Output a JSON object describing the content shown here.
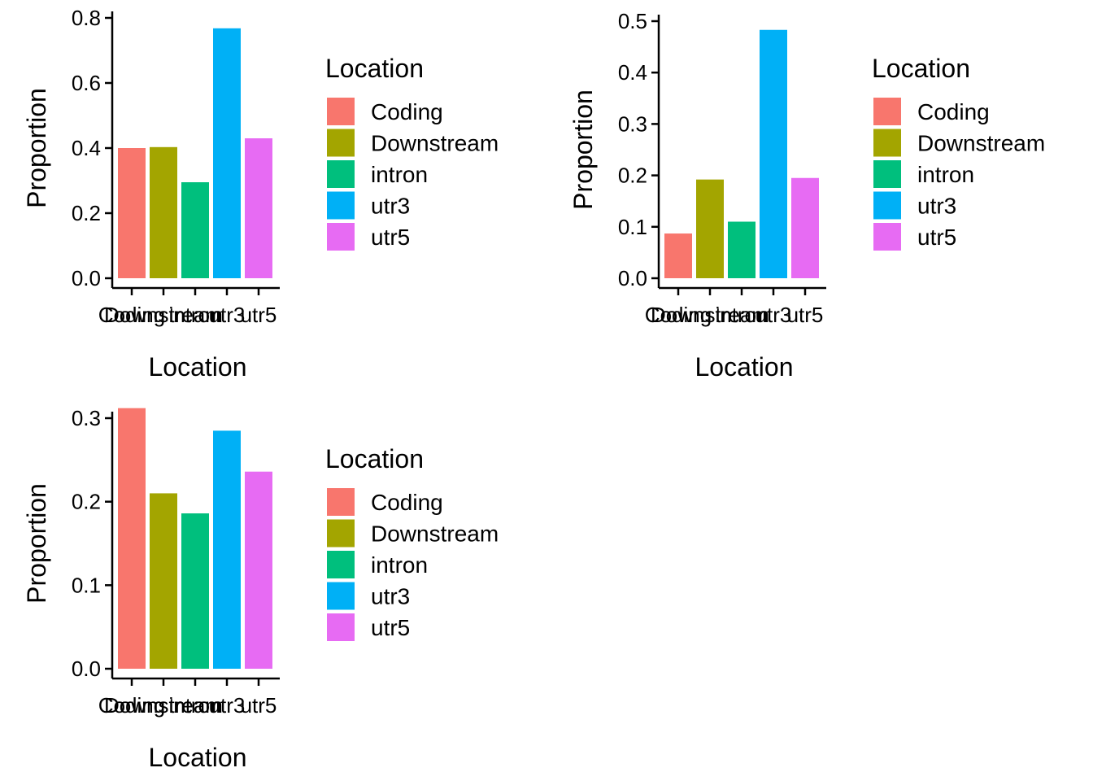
{
  "palette": {
    "Coding": "#F8766D",
    "Downstream": "#A3A500",
    "intron": "#00BF7D",
    "utr3": "#00B0F6",
    "utr5": "#E76BF3"
  },
  "legend": {
    "title": "Location",
    "entries": [
      "Coding",
      "Downstream",
      "intron",
      "utr3",
      "utr5"
    ]
  },
  "chart_data": [
    {
      "type": "bar",
      "xlabel": "Location",
      "ylabel": "Proportion",
      "categories": [
        "Coding",
        "Downstream",
        "intron",
        "utr3",
        "utr5"
      ],
      "values": [
        0.4,
        0.403,
        0.295,
        0.768,
        0.43
      ],
      "ylim": [
        0,
        0.8
      ],
      "yticks": [
        0.0,
        0.2,
        0.4,
        0.6,
        0.8
      ],
      "ytick_labels": [
        "0.0",
        "0.2",
        "0.4",
        "0.6",
        "0.8"
      ],
      "grid": false,
      "legend_position": "right"
    },
    {
      "type": "bar",
      "xlabel": "Location",
      "ylabel": "Proportion",
      "categories": [
        "Coding",
        "Downstream",
        "intron",
        "utr3",
        "utr5"
      ],
      "values": [
        0.087,
        0.192,
        0.11,
        0.483,
        0.195
      ],
      "ylim": [
        0,
        0.5
      ],
      "yticks": [
        0.0,
        0.1,
        0.2,
        0.3,
        0.4,
        0.5
      ],
      "ytick_labels": [
        "0.0",
        "0.1",
        "0.2",
        "0.3",
        "0.4",
        "0.5"
      ],
      "grid": false,
      "legend_position": "right"
    },
    {
      "type": "bar",
      "xlabel": "Location",
      "ylabel": "Proportion",
      "categories": [
        "Coding",
        "Downstream",
        "intron",
        "utr3",
        "utr5"
      ],
      "values": [
        0.312,
        0.21,
        0.186,
        0.285,
        0.236
      ],
      "ylim": [
        0,
        0.3
      ],
      "yticks": [
        0.0,
        0.1,
        0.2,
        0.3
      ],
      "ytick_labels": [
        "0.0",
        "0.1",
        "0.2",
        "0.3"
      ],
      "grid": false,
      "legend_position": "right"
    }
  ]
}
